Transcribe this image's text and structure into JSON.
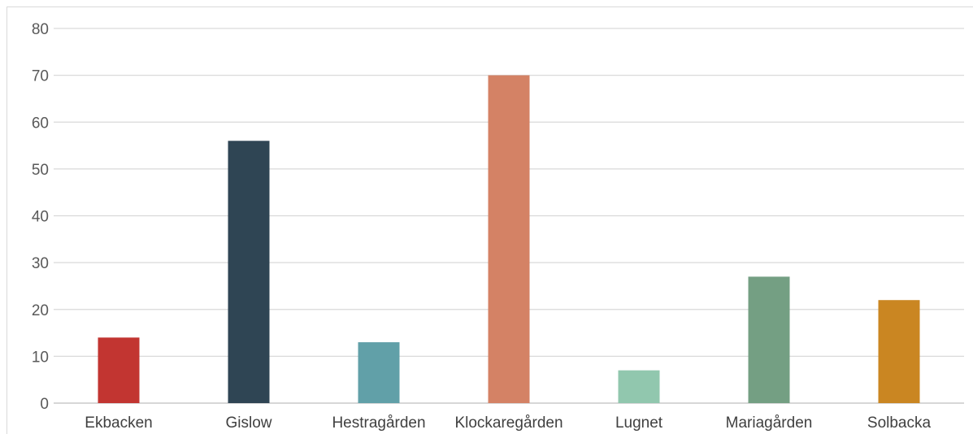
{
  "chart_data": {
    "type": "bar",
    "title": "",
    "xlabel": "",
    "ylabel": "",
    "ylim": [
      0,
      80
    ],
    "yticks": [
      0,
      10,
      20,
      30,
      40,
      50,
      60,
      70,
      80
    ],
    "grid": true,
    "legend": "none",
    "categories": [
      "Ekbacken",
      "Gislow",
      "Hestragården",
      "Klockaregården",
      "Lugnet",
      "Mariagården",
      "Solbacka"
    ],
    "values": [
      14,
      56,
      13,
      70,
      7,
      27,
      22
    ],
    "colors": [
      "#c23531",
      "#2f4554",
      "#61a0a8",
      "#d48265",
      "#91c7ae",
      "#749f83",
      "#ca8622"
    ]
  }
}
